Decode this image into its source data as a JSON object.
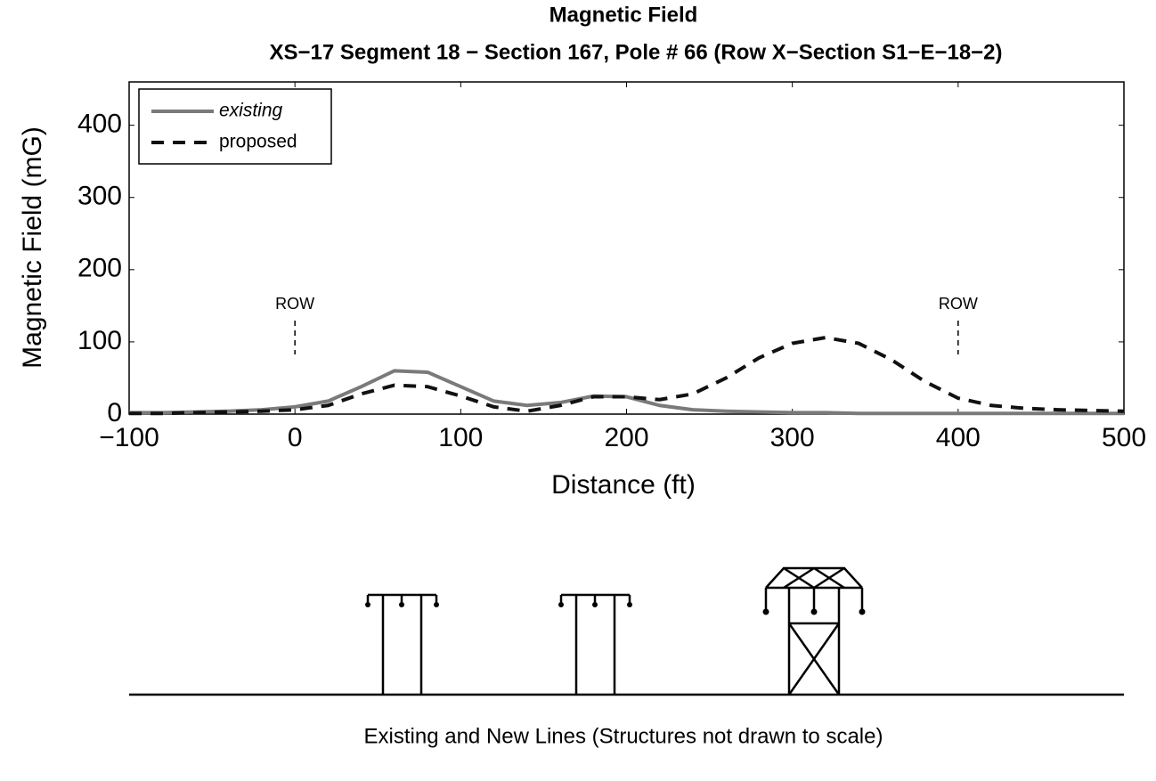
{
  "chart_data": {
    "type": "line",
    "title": "Magnetic Field",
    "subtitle": "XS−17 Segment 18 − Section 167, Pole # 66 (Row X−Section S1−E−18−2)",
    "x_label": "Distance (ft)",
    "y_label": "Magnetic Field (mG)",
    "x": [
      -100,
      -80,
      -60,
      -40,
      -20,
      0,
      20,
      40,
      60,
      80,
      100,
      120,
      140,
      160,
      180,
      200,
      220,
      240,
      260,
      280,
      300,
      320,
      340,
      360,
      380,
      400,
      420,
      440,
      460,
      480,
      500
    ],
    "series": [
      {
        "name": "existing",
        "color": "#7a7a7a",
        "style": "solid",
        "values": [
          2,
          2,
          3,
          4,
          6,
          10,
          18,
          38,
          60,
          58,
          38,
          18,
          12,
          16,
          25,
          24,
          12,
          6,
          4,
          3,
          2,
          2,
          1,
          1,
          1,
          1,
          1,
          1,
          1,
          1,
          1
        ]
      },
      {
        "name": "proposed",
        "color": "#111111",
        "style": "dashed",
        "values": [
          1,
          1,
          2,
          3,
          4,
          6,
          12,
          28,
          40,
          38,
          25,
          10,
          4,
          12,
          24,
          24,
          20,
          28,
          50,
          78,
          98,
          106,
          98,
          75,
          45,
          22,
          12,
          8,
          6,
          5,
          4
        ]
      }
    ],
    "xlim": [
      -100,
      500
    ],
    "ylim": [
      0,
      460
    ],
    "xticks": [
      {
        "value": -100,
        "label": "−100"
      },
      0,
      100,
      200,
      300,
      400,
      500
    ],
    "yticks": [
      0,
      100,
      200,
      300,
      400
    ],
    "legend": "upper left",
    "annotations": [
      {
        "text": "ROW",
        "x": 0
      },
      {
        "text": "ROW",
        "x": 400
      }
    ],
    "caption": "Existing and New Lines (Structures not drawn to scale)"
  }
}
